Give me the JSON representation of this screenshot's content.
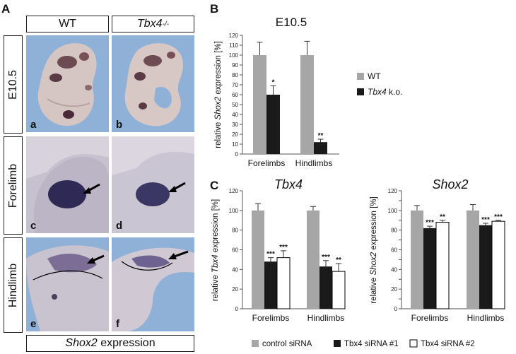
{
  "panel_a": {
    "letter": "A",
    "col_headers": [
      "WT",
      "Tbx4"
    ],
    "col_header_sup": "-/-",
    "row_labels": [
      "E10.5",
      "Forelimb",
      "Hindlimb"
    ],
    "sub_labels": [
      "a",
      "b",
      "c",
      "d",
      "e",
      "f"
    ],
    "footer_gene": "Shox2",
    "footer_rest": " expression",
    "colors": {
      "bg_blue": "#8fb1d8",
      "embryo": "#d8c7c4",
      "stain": "#3d2f52"
    }
  },
  "panel_b": {
    "letter": "B"
  },
  "panel_c": {
    "letter": "C"
  },
  "chart_data": [
    {
      "type": "bar",
      "title": "E10.5",
      "ylabel": "relative Shox2 expression [%]",
      "categories": [
        "Forelimbs",
        "Hindlimbs"
      ],
      "ylim": [
        0,
        120
      ],
      "yticks": [
        0,
        10,
        20,
        30,
        40,
        50,
        60,
        70,
        80,
        90,
        100,
        110,
        120
      ],
      "series": [
        {
          "name": "WT",
          "color": "#a6a6a6",
          "values": [
            100,
            100
          ],
          "errors": [
            13,
            14
          ],
          "sig": [
            "",
            ""
          ]
        },
        {
          "name": "Tbx4 k.o.",
          "color": "#1a1a1a",
          "values": [
            60,
            12
          ],
          "errors": [
            9,
            3
          ],
          "sig": [
            "*",
            "**"
          ]
        }
      ],
      "legend": [
        "WT",
        "Tbx4 k.o."
      ],
      "legend_placement": "right"
    },
    {
      "type": "bar",
      "title": "Tbx4",
      "ylabel": "relative Tbx4 expression [%]",
      "categories": [
        "Forelimbs",
        "Hindlimbs"
      ],
      "ylim": [
        0,
        120
      ],
      "yticks": [
        0,
        20,
        40,
        60,
        80,
        100,
        120
      ],
      "series": [
        {
          "name": "control siRNA",
          "color": "#a6a6a6",
          "values": [
            100,
            100
          ],
          "errors": [
            7,
            4
          ],
          "sig": [
            "",
            ""
          ]
        },
        {
          "name": "Tbx4 siRNA #1",
          "color": "#1a1a1a",
          "values": [
            48,
            43
          ],
          "errors": [
            4,
            6
          ],
          "sig": [
            "***",
            "***"
          ]
        },
        {
          "name": "Tbx4 siRNA #2",
          "color": "#ffffff",
          "values": [
            52,
            38
          ],
          "errors": [
            7,
            8
          ],
          "sig": [
            "***",
            "**"
          ]
        }
      ]
    },
    {
      "type": "bar",
      "title": "Shox2",
      "ylabel": "relative Shox2 expression [%]",
      "categories": [
        "Forelimbs",
        "Hindlimbs"
      ],
      "ylim": [
        0,
        120
      ],
      "yticks": [
        0,
        10,
        20,
        30,
        40,
        50,
        60,
        70,
        80,
        90,
        100,
        110,
        120
      ],
      "series": [
        {
          "name": "control siRNA",
          "color": "#a6a6a6",
          "values": [
            100,
            100
          ],
          "errors": [
            5,
            6
          ],
          "sig": [
            "",
            ""
          ]
        },
        {
          "name": "Tbx4 siRNA #1",
          "color": "#1a1a1a",
          "values": [
            82,
            85
          ],
          "errors": [
            2,
            2
          ],
          "sig": [
            "***",
            "***"
          ]
        },
        {
          "name": "Tbx4 siRNA #2",
          "color": "#ffffff",
          "values": [
            88,
            89
          ],
          "errors": [
            2,
            1
          ],
          "sig": [
            "**",
            "***"
          ]
        }
      ],
      "legend": [
        "control siRNA",
        "Tbx4 siRNA #1",
        "Tbx4 siRNA #2"
      ],
      "legend_placement": "bottom"
    }
  ]
}
